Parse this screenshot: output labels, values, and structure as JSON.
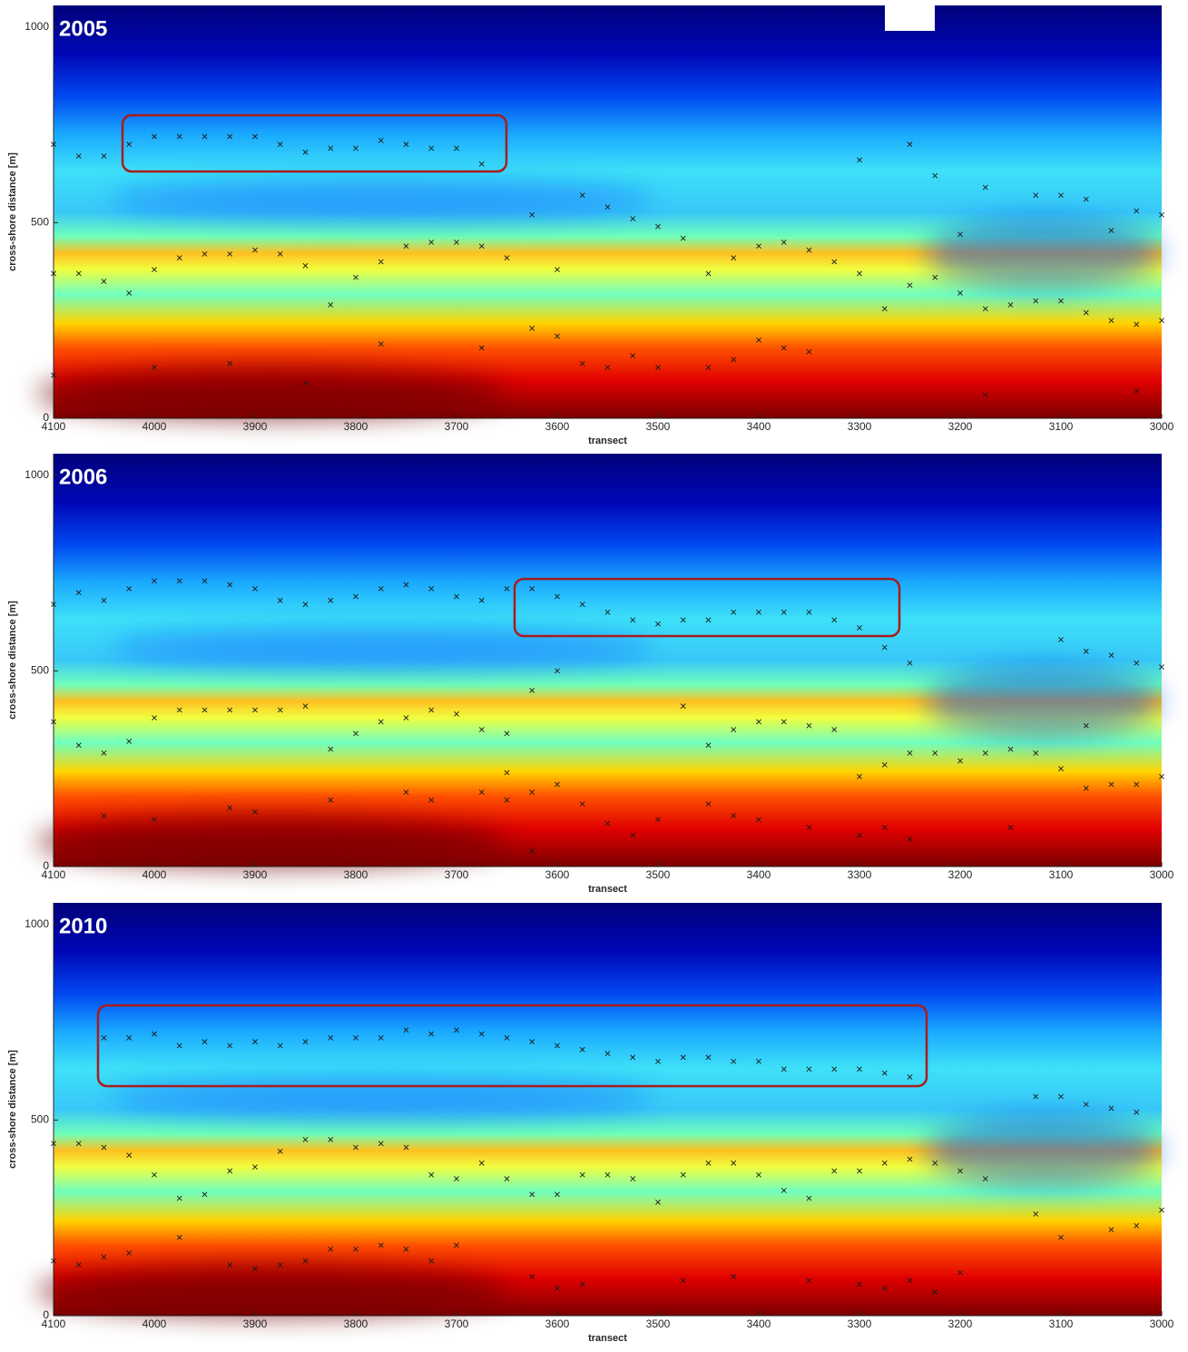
{
  "chart_data": [
    {
      "type": "scatter",
      "title": "2005",
      "x_label": "transect",
      "y_label": "cross-shore distance [m]",
      "xlim": [
        4100,
        3000
      ],
      "ylim": [
        0,
        1055
      ],
      "xticks": [
        4100,
        4000,
        3900,
        3800,
        3700,
        3600,
        3500,
        3400,
        3300,
        3200,
        3100,
        3000
      ],
      "yticks": [
        0,
        500,
        1000
      ],
      "color": "#1a1a1a",
      "x": [
        4100,
        4075,
        4050,
        4025,
        4000,
        3975,
        3950,
        3925,
        3900,
        3875,
        3850,
        3825,
        3800,
        3775,
        3750,
        3725,
        3700,
        3675,
        3625,
        3600,
        3575,
        3550,
        3525,
        3500,
        3475,
        3450,
        3425,
        3400,
        3375,
        3350,
        3325,
        3300,
        3275,
        3250,
        3225,
        3200,
        3175,
        3150,
        3125,
        3100,
        3075,
        3050,
        3025,
        3000,
        3300,
        3250,
        3225,
        3175,
        3125,
        3100,
        3075,
        3050,
        3025,
        3000,
        3200,
        4100,
        4075,
        4050,
        4025,
        4000,
        3975,
        3950,
        3925,
        3900,
        3875,
        3850,
        3825,
        3800,
        3775,
        3750,
        3725,
        3700,
        3675,
        3650,
        3625,
        3600,
        3575,
        3550,
        3525,
        3500,
        3450,
        3425,
        3400,
        3375,
        3350,
        3175,
        3025,
        4100,
        4000,
        3925,
        3850,
        3775,
        3675
      ],
      "y": [
        700,
        670,
        670,
        700,
        720,
        720,
        720,
        720,
        720,
        700,
        680,
        690,
        690,
        710,
        700,
        690,
        690,
        650,
        520,
        380,
        570,
        540,
        510,
        490,
        460,
        370,
        410,
        440,
        450,
        430,
        400,
        370,
        280,
        340,
        360,
        320,
        280,
        290,
        300,
        300,
        270,
        250,
        240,
        250,
        660,
        700,
        620,
        590,
        570,
        570,
        560,
        480,
        530,
        520,
        470,
        370,
        370,
        350,
        320,
        380,
        410,
        420,
        420,
        430,
        420,
        390,
        290,
        360,
        400,
        440,
        450,
        450,
        440,
        410,
        230,
        210,
        140,
        130,
        160,
        130,
        130,
        150,
        200,
        180,
        170,
        60,
        70,
        110,
        130,
        140,
        90,
        190,
        180
      ]
    },
    {
      "type": "scatter",
      "title": "2006",
      "x_label": "transect",
      "y_label": "cross-shore distance [m]",
      "xlim": [
        4100,
        3000
      ],
      "ylim": [
        0,
        1055
      ],
      "xticks": [
        4100,
        4000,
        3900,
        3800,
        3700,
        3600,
        3500,
        3400,
        3300,
        3200,
        3100,
        3000
      ],
      "yticks": [
        0,
        500,
        1000
      ],
      "color": "#1a1a1a",
      "x": [
        4100,
        4075,
        4050,
        4025,
        4000,
        3975,
        3950,
        3925,
        3900,
        3875,
        3850,
        3825,
        3800,
        3775,
        3750,
        3725,
        3700,
        3675,
        3650,
        3625,
        3600,
        3575,
        3550,
        3525,
        3500,
        3475,
        3450,
        3425,
        3400,
        3375,
        3350,
        3325,
        3300,
        3275,
        3250,
        3100,
        3075,
        3050,
        3025,
        3000,
        3600,
        3625,
        4100,
        4075,
        4050,
        4025,
        4000,
        3975,
        3950,
        3925,
        3900,
        3875,
        3850,
        3825,
        3800,
        3775,
        3750,
        3725,
        3700,
        3675,
        3650,
        3475,
        3450,
        3425,
        3400,
        3375,
        3350,
        3325,
        3300,
        3275,
        3250,
        3225,
        3200,
        3175,
        3150,
        3125,
        3100,
        3075,
        3075,
        3050,
        3025,
        3000,
        4050,
        4000,
        3925,
        3900,
        3825,
        3750,
        3725,
        3675,
        3650,
        3650,
        3625,
        3600,
        3575,
        3550,
        3525,
        3500,
        3450,
        3425,
        3400,
        3350,
        3300,
        3275,
        3250,
        3150,
        3625
      ],
      "y": [
        670,
        700,
        680,
        710,
        730,
        730,
        730,
        720,
        710,
        680,
        670,
        680,
        690,
        710,
        720,
        710,
        690,
        680,
        710,
        710,
        690,
        670,
        650,
        630,
        620,
        630,
        630,
        650,
        650,
        650,
        650,
        630,
        610,
        560,
        520,
        580,
        550,
        540,
        520,
        510,
        500,
        450,
        370,
        310,
        290,
        320,
        380,
        400,
        400,
        400,
        400,
        400,
        410,
        300,
        340,
        370,
        380,
        400,
        390,
        350,
        340,
        410,
        310,
        350,
        370,
        370,
        360,
        350,
        230,
        260,
        290,
        290,
        270,
        290,
        300,
        290,
        250,
        360,
        200,
        210,
        210,
        230,
        130,
        120,
        150,
        140,
        170,
        190,
        170,
        190,
        240,
        170,
        190,
        210,
        160,
        110,
        80,
        120,
        160,
        130,
        120,
        100,
        80,
        100,
        70,
        100,
        40
      ]
    },
    {
      "type": "scatter",
      "title": "2010",
      "x_label": "transect",
      "y_label": "cross-shore distance [m]",
      "xlim": [
        4100,
        3000
      ],
      "ylim": [
        0,
        1055
      ],
      "xticks": [
        4100,
        4000,
        3900,
        3800,
        3700,
        3600,
        3500,
        3400,
        3300,
        3200,
        3100,
        3000
      ],
      "yticks": [
        0,
        500,
        1000
      ],
      "color": "#1a1a1a",
      "x": [
        4050,
        4025,
        4000,
        3975,
        3950,
        3925,
        3900,
        3875,
        3850,
        3825,
        3800,
        3775,
        3750,
        3725,
        3700,
        3675,
        3650,
        3625,
        3600,
        3575,
        3550,
        3525,
        3500,
        3475,
        3450,
        3425,
        3400,
        3375,
        3350,
        3325,
        3300,
        3275,
        3250,
        3125,
        3100,
        3075,
        3050,
        3025,
        4100,
        4075,
        4050,
        4025,
        4000,
        3975,
        3950,
        3925,
        3900,
        3875,
        3850,
        3825,
        3800,
        3775,
        3750,
        3725,
        3700,
        3675,
        3650,
        3625,
        3600,
        3575,
        3550,
        3525,
        3500,
        3475,
        3450,
        3425,
        3400,
        3375,
        3350,
        3325,
        3300,
        3275,
        3250,
        3225,
        3200,
        3175,
        3125,
        3100,
        3050,
        3025,
        3000,
        4100,
        4075,
        4050,
        4025,
        3975,
        3925,
        3900,
        3875,
        3850,
        3825,
        3800,
        3775,
        3750,
        3725,
        3700,
        3625,
        3600,
        3575,
        3475,
        3425,
        3350,
        3300,
        3275,
        3250,
        3225,
        3200
      ],
      "y": [
        710,
        710,
        720,
        690,
        700,
        690,
        700,
        690,
        700,
        710,
        710,
        710,
        730,
        720,
        730,
        720,
        710,
        700,
        690,
        680,
        670,
        660,
        650,
        660,
        660,
        650,
        650,
        630,
        630,
        630,
        630,
        620,
        610,
        560,
        560,
        540,
        530,
        520,
        440,
        440,
        430,
        410,
        360,
        300,
        310,
        370,
        380,
        420,
        450,
        450,
        430,
        440,
        430,
        360,
        350,
        390,
        350,
        310,
        310,
        360,
        360,
        350,
        290,
        360,
        390,
        390,
        360,
        320,
        300,
        370,
        370,
        390,
        400,
        390,
        370,
        350,
        260,
        200,
        220,
        230,
        270,
        140,
        130,
        150,
        160,
        200,
        130,
        120,
        130,
        140,
        170,
        170,
        180,
        170,
        140,
        180,
        100,
        70,
        80,
        90,
        100,
        90,
        80,
        70,
        90,
        60,
        110
      ]
    }
  ]
}
